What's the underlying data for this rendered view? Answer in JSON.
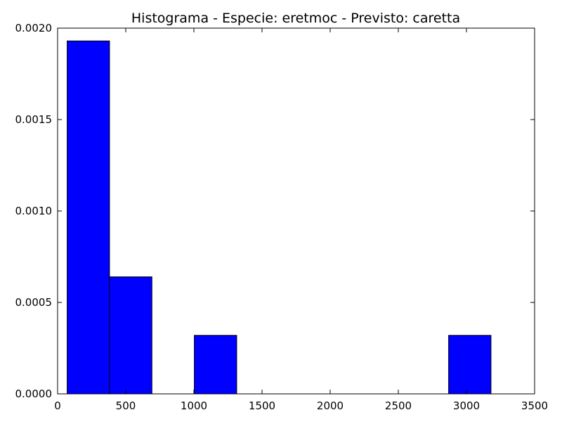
{
  "chart_data": {
    "type": "bar",
    "title": "Histograma - Especie: eretmoc - Previsto: caretta",
    "xlabel": "",
    "ylabel": "",
    "xlim": [
      0,
      3500
    ],
    "ylim": [
      0,
      0.002
    ],
    "x_ticks": [
      0,
      500,
      1000,
      1500,
      2000,
      2500,
      3000,
      3500
    ],
    "x_tick_labels": [
      "0",
      "500",
      "1000",
      "1500",
      "2000",
      "2500",
      "3000",
      "3500"
    ],
    "y_ticks": [
      0,
      0.0005,
      0.001,
      0.0015,
      0.002
    ],
    "y_tick_labels": [
      "0.0000",
      "0.0005",
      "0.0010",
      "0.0015",
      "0.0020"
    ],
    "bins": [
      {
        "x0": 70,
        "x1": 381,
        "value": 0.00193
      },
      {
        "x0": 381,
        "x1": 692,
        "value": 0.00064
      },
      {
        "x0": 692,
        "x1": 1003,
        "value": 0.0
      },
      {
        "x0": 1003,
        "x1": 1314,
        "value": 0.00032
      },
      {
        "x0": 1314,
        "x1": 1625,
        "value": 0.0
      },
      {
        "x0": 1625,
        "x1": 1936,
        "value": 0.0
      },
      {
        "x0": 1936,
        "x1": 2247,
        "value": 0.0
      },
      {
        "x0": 2247,
        "x1": 2558,
        "value": 0.0
      },
      {
        "x0": 2558,
        "x1": 2869,
        "value": 0.0
      },
      {
        "x0": 2869,
        "x1": 3180,
        "value": 0.00032
      }
    ],
    "bar_color": "#0000ff",
    "edge_color": "#000000",
    "grid": false
  }
}
